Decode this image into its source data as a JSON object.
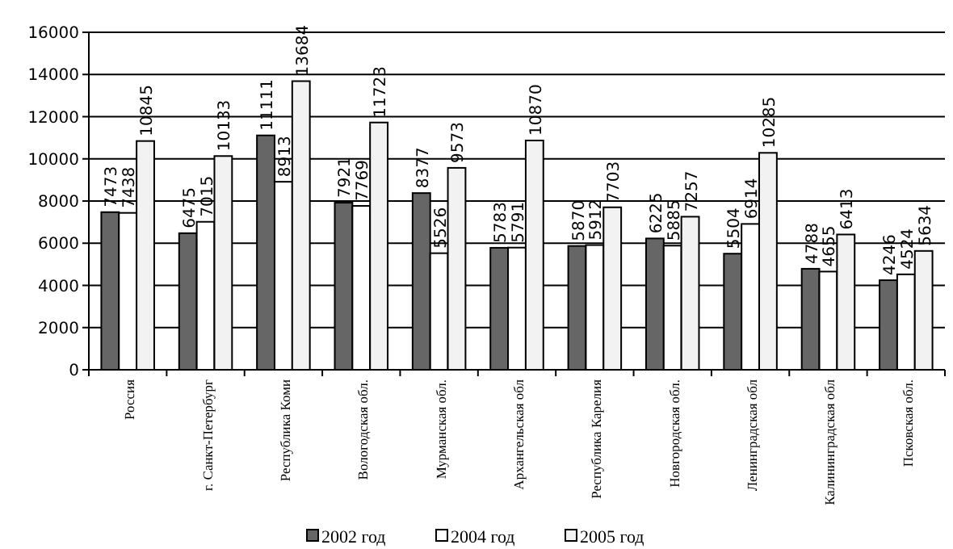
{
  "chart_data": {
    "type": "bar",
    "categories": [
      "Россия",
      "г. Санкт-Петербург",
      "Республика Коми",
      "Вологодская обл.",
      "Мурманская обл.",
      "Архангельская обл",
      "Республика Карелия",
      "Новгородская обл.",
      "Ленинградская обл",
      "Калининградская обл",
      "Псковская обл."
    ],
    "series": [
      {
        "name": "2002 год",
        "color": "#666666",
        "values": [
          7473,
          6475,
          11111,
          7921,
          8377,
          5783,
          5870,
          6225,
          5504,
          4788,
          4246
        ]
      },
      {
        "name": "2004 год",
        "color": "#ffffff",
        "values": [
          7438,
          7015,
          8913,
          7769,
          5526,
          5791,
          5912,
          5885,
          6914,
          4655,
          4524
        ]
      },
      {
        "name": "2005 год",
        "color": "#f2f2f2",
        "values": [
          10845,
          10133,
          13684,
          11723,
          9573,
          10870,
          7703,
          7257,
          10285,
          6413,
          5634
        ]
      }
    ],
    "ylim": [
      0,
      16000
    ],
    "yticks": [
      0,
      2000,
      4000,
      6000,
      8000,
      10000,
      12000,
      14000,
      16000
    ],
    "grid": "y",
    "legend": "bottom",
    "data_labels": true
  }
}
